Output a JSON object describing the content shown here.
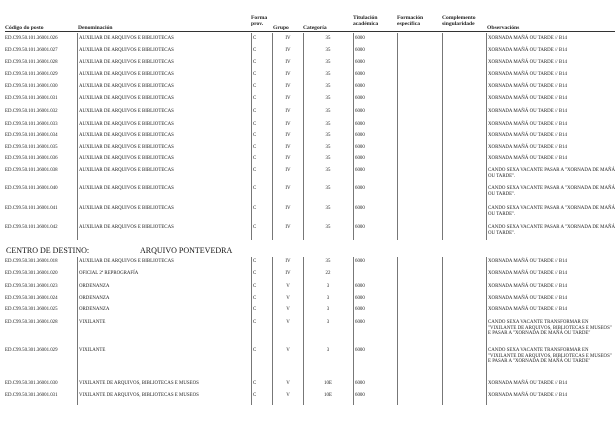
{
  "headers": {
    "code": "Código do posto",
    "denomination": "Denominación",
    "forma": [
      "Forma",
      "prov."
    ],
    "grupo": "Grupo",
    "categoria": "Categoría",
    "titulacion": [
      "Titulación",
      "académica"
    ],
    "formacion": [
      "Formación",
      "específica"
    ],
    "complemento": [
      "Complemento",
      "singularidade"
    ],
    "observacions": "Observacións"
  },
  "block1": {
    "rows": [
      {
        "code": "ED.C99.50.101.36001.026",
        "denomination": "AUXILIAR DE ARQUIVOS E BIBLIOTECAS",
        "forma": "C",
        "grupo": "IV",
        "categoria": "35",
        "titulacion": "6000",
        "observacions": "XORNADA MAÑÁ OU TARDE // B14"
      },
      {
        "code": "ED.C99.50.101.36001.027",
        "denomination": "AUXILIAR DE ARQUIVOS E BIBLIOTECAS",
        "forma": "C",
        "grupo": "IV",
        "categoria": "35",
        "titulacion": "6000",
        "observacions": "XORNADA MAÑÁ OU TARDE // B14"
      },
      {
        "code": "ED.C99.50.101.36001.028",
        "denomination": "AUXILIAR DE ARQUIVOS E BIBLIOTECAS",
        "forma": "C",
        "grupo": "IV",
        "categoria": "35",
        "titulacion": "6000",
        "observacions": "XORNADA MAÑÁ OU TARDE // B14"
      },
      {
        "code": "ED.C99.50.101.36001.029",
        "denomination": "AUXILIAR DE ARQUIVOS E BIBLIOTECAS",
        "forma": "C",
        "grupo": "IV",
        "categoria": "35",
        "titulacion": "6000",
        "observacions": "XORNADA MAÑÁ OU TARDE // B14"
      },
      {
        "code": "ED.C99.50.101.36001.030",
        "denomination": "AUXILIAR DE ARQUIVOS E BIBLIOTECAS",
        "forma": "C",
        "grupo": "IV",
        "categoria": "35",
        "titulacion": "6000",
        "observacions": "XORNADA MAÑÁ OU TARDE // B14"
      },
      {
        "code": "ED.C99.50.101.36001.031",
        "denomination": "AUXILIAR DE ARQUIVOS E BIBLIOTECAS",
        "forma": "C",
        "grupo": "IV",
        "categoria": "35",
        "titulacion": "6000",
        "observacions": "XORNADA MAÑÁ OU TARDE // B14"
      },
      {
        "code": "ED.C99.50.101.36001.032",
        "denomination": "AUXILIAR DE ARQUIVOS E BIBLIOTECAS",
        "forma": "C",
        "grupo": "IV",
        "categoria": "35",
        "titulacion": "6000",
        "observacions": "XORNADA MAÑÁ OU TARDE // B14"
      },
      {
        "code": "ED.C99.50.101.36001.033",
        "denomination": "AUXILIAR DE ARQUIVOS E BIBLIOTECAS",
        "forma": "C",
        "grupo": "IV",
        "categoria": "35",
        "titulacion": "6000",
        "observacions": "XORNADA MAÑÁ OU TARDE // B14"
      },
      {
        "code": "ED.C99.50.101.36001.034",
        "denomination": "AUXILIAR DE ARQUIVOS E BIBLIOTECAS",
        "forma": "C",
        "grupo": "IV",
        "categoria": "35",
        "titulacion": "6000",
        "observacions": "XORNADA MAÑÁ OU TARDE // B14"
      },
      {
        "code": "ED.C99.50.101.36001.035",
        "denomination": "AUXILIAR DE ARQUIVOS E BIBLIOTECAS",
        "forma": "C",
        "grupo": "IV",
        "categoria": "35",
        "titulacion": "6000",
        "observacions": "XORNADA MAÑÁ OU TARDE // B14"
      },
      {
        "code": "ED.C99.50.101.36001.036",
        "denomination": "AUXILIAR DE ARQUIVOS E BIBLIOTECAS",
        "forma": "C",
        "grupo": "IV",
        "categoria": "35",
        "titulacion": "6000",
        "observacions": "XORNADA MAÑÁ OU TARDE // B14"
      },
      {
        "code": "ED.C99.50.101.36001.038",
        "denomination": "AUXILIAR DE ARQUIVOS E BIBLIOTECAS",
        "forma": "C",
        "grupo": "IV",
        "categoria": "35",
        "titulacion": "6000",
        "observacions": "CANDO SEXA VACANTE PASAR A \"XORNADA DE MAÑÁ OU TARDE\"."
      },
      {
        "code": "ED.C99.50.101.36001.040",
        "denomination": "AUXILIAR DE ARQUIVOS E BIBLIOTECAS",
        "forma": "C",
        "grupo": "IV",
        "categoria": "35",
        "titulacion": "6000",
        "observacions": "CANDO SEXA VACANTE PASAR A \"XORNADA DE MAÑÁ OU TARDE\"."
      },
      {
        "code": "ED.C99.50.101.36001.041",
        "denomination": "AUXILIAR DE ARQUIVOS E BIBLIOTECAS",
        "forma": "C",
        "grupo": "IV",
        "categoria": "35",
        "titulacion": "6000",
        "observacions": "CANDO SEXA VACANTE PASAR A \"XORNADA DE MAÑÁ OU TARDE\"."
      },
      {
        "code": "ED.C99.50.101.36001.042",
        "denomination": "AUXILIAR DE ARQUIVOS E BIBLIOTECAS",
        "forma": "C",
        "grupo": "IV",
        "categoria": "35",
        "titulacion": "6000",
        "observacions": "CANDO SEXA VACANTE PASAR A \"XORNADA DE MAÑÁ OU TARDE\"."
      }
    ]
  },
  "block2": {
    "section_label": "CENTRO DE DESTINO:",
    "section_value": "ARQUIVO PONTEVEDRA",
    "rows": [
      {
        "code": "ED.C99.50.301.36001.018",
        "denomination": "AUXILIAR DE ARQUIVOS E BIBLIOTECAS",
        "forma": "C",
        "grupo": "IV",
        "categoria": "35",
        "titulacion": "6000",
        "observacions": "XORNADA MAÑÁ OU TARDE // B14"
      },
      {
        "code": "ED.C99.50.301.36001.020",
        "denomination": "OFICIAL 2ª REPROGRAFÍA",
        "forma": "C",
        "grupo": "IV",
        "categoria": "22",
        "titulacion": "",
        "observacions": "XORNADA MAÑÁ OU TARDE // B14"
      },
      {
        "code": "ED.C99.50.301.36001.023",
        "denomination": "ORDENANZA",
        "forma": "C",
        "grupo": "V",
        "categoria": "3",
        "titulacion": "6000",
        "observacions": "XORNADA MAÑÁ OU TARDE // B14"
      },
      {
        "code": "ED.C99.50.301.36001.024",
        "denomination": "ORDENANZA",
        "forma": "C",
        "grupo": "V",
        "categoria": "3",
        "titulacion": "6000",
        "observacions": "XORNADA MAÑÁ OU TARDE // B14"
      },
      {
        "code": "ED.C99.50.301.36001.025",
        "denomination": "ORDENANZA",
        "forma": "C",
        "grupo": "V",
        "categoria": "3",
        "titulacion": "6000",
        "observacions": "XORNADA MAÑÁ OU TARDE // B14"
      },
      {
        "code": "ED.C99.50.301.36001.028",
        "denomination": "VIXILANTE",
        "forma": "C",
        "grupo": "V",
        "categoria": "3",
        "titulacion": "6000",
        "observacions": "CANDO SEXA VACANTE TRANSFORMAR EN \"VIXILANTE DE ARQUIVOS, BIBLIOTECAS E MUSEOS\" E PASAR A \"XORNADA DE MAÑÁ OU TARDE\""
      },
      {
        "code": "ED.C99.50.301.36001.029",
        "denomination": "VIXILANTE",
        "forma": "C",
        "grupo": "V",
        "categoria": "3",
        "titulacion": "6000",
        "observacions": "CANDO SEXA VACANTE TRANSFORMAR EN \"VIXILANTE DE ARQUIVOS, BIBLIOTECAS E MUSEOS\" E PASAR A \"XORNADA DE MAÑÁ OU TARDE\""
      },
      {
        "code": "ED.C99.50.301.36001.030",
        "denomination": "VIXILANTE DE ARQUIVOS, BIBLIOTECAS E MUSEOS",
        "forma": "C",
        "grupo": "V",
        "categoria": "10E",
        "titulacion": "6000",
        "observacions": "XORNADA MAÑÁ OU TARDE // B14"
      },
      {
        "code": "ED.C99.50.301.36001.031",
        "denomination": "VIXILANTE DE ARQUIVOS, BIBLIOTECAS E MUSEOS",
        "forma": "C",
        "grupo": "V",
        "categoria": "10E",
        "titulacion": "6000",
        "observacions": "XORNADA MAÑÁ OU TARDE // B14"
      }
    ]
  }
}
